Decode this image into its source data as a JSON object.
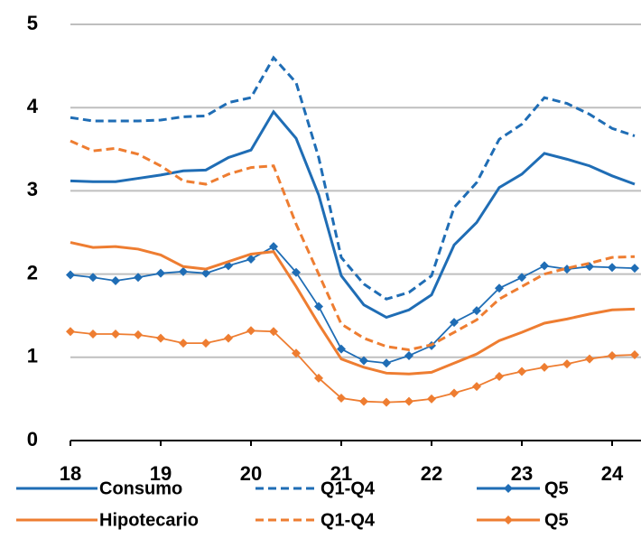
{
  "chart_data": {
    "type": "line",
    "x": [
      18,
      18.25,
      18.5,
      18.75,
      19,
      19.25,
      19.5,
      19.75,
      20,
      20.25,
      20.5,
      20.75,
      21,
      21.25,
      21.5,
      21.75,
      22,
      22.25,
      22.5,
      22.75,
      23,
      23.25,
      23.5,
      23.75,
      24,
      24.25
    ],
    "xlim": [
      18,
      24.32
    ],
    "xticks": [
      18,
      19,
      20,
      21,
      22,
      23,
      24
    ],
    "ylim": [
      0,
      5
    ],
    "yticks": [
      0,
      1,
      2,
      3,
      4,
      5
    ],
    "grid": true,
    "series": [
      {
        "name": "Consumo",
        "color": "#1f6db5",
        "style": "solid",
        "values": [
          3.12,
          3.11,
          3.11,
          3.15,
          3.19,
          3.24,
          3.25,
          3.4,
          3.49,
          3.95,
          3.63,
          2.95,
          1.98,
          1.63,
          1.48,
          1.57,
          1.75,
          2.35,
          2.62,
          3.04,
          3.2,
          3.45,
          3.38,
          3.3,
          3.18,
          3.08
        ]
      },
      {
        "name": "Q1-Q4",
        "color": "#1f6db5",
        "style": "dashed",
        "values": [
          3.88,
          3.84,
          3.84,
          3.84,
          3.85,
          3.89,
          3.9,
          4.06,
          4.12,
          4.6,
          4.3,
          3.4,
          2.2,
          1.88,
          1.7,
          1.78,
          1.98,
          2.8,
          3.1,
          3.62,
          3.8,
          4.12,
          4.05,
          3.92,
          3.75,
          3.66
        ]
      },
      {
        "name": "Q5",
        "color": "#1f6db5",
        "style": "marker",
        "values": [
          1.99,
          1.96,
          1.92,
          1.96,
          2.01,
          2.03,
          2.01,
          2.1,
          2.18,
          2.33,
          2.02,
          1.61,
          1.1,
          0.96,
          0.93,
          1.02,
          1.14,
          1.42,
          1.56,
          1.83,
          1.96,
          2.1,
          2.06,
          2.09,
          2.08,
          2.07
        ]
      },
      {
        "name": "Hipotecario",
        "color": "#ee7d31",
        "style": "solid",
        "values": [
          2.38,
          2.32,
          2.33,
          2.3,
          2.23,
          2.09,
          2.06,
          2.15,
          2.24,
          2.27,
          1.85,
          1.4,
          0.98,
          0.88,
          0.81,
          0.8,
          0.82,
          0.93,
          1.04,
          1.2,
          1.3,
          1.41,
          1.46,
          1.52,
          1.57,
          1.58
        ]
      },
      {
        "name": "Q1-Q4",
        "color": "#ee7d31",
        "style": "dashed",
        "values": [
          3.6,
          3.48,
          3.51,
          3.44,
          3.3,
          3.12,
          3.08,
          3.2,
          3.28,
          3.3,
          2.6,
          2.0,
          1.4,
          1.23,
          1.13,
          1.09,
          1.15,
          1.3,
          1.45,
          1.7,
          1.85,
          2.0,
          2.07,
          2.13,
          2.2,
          2.21
        ]
      },
      {
        "name": "Q5",
        "color": "#ee7d31",
        "style": "marker",
        "values": [
          1.31,
          1.28,
          1.28,
          1.27,
          1.23,
          1.17,
          1.17,
          1.23,
          1.32,
          1.31,
          1.05,
          0.75,
          0.51,
          0.47,
          0.46,
          0.47,
          0.5,
          0.57,
          0.65,
          0.77,
          0.83,
          0.88,
          0.92,
          0.98,
          1.02,
          1.03
        ]
      }
    ]
  }
}
